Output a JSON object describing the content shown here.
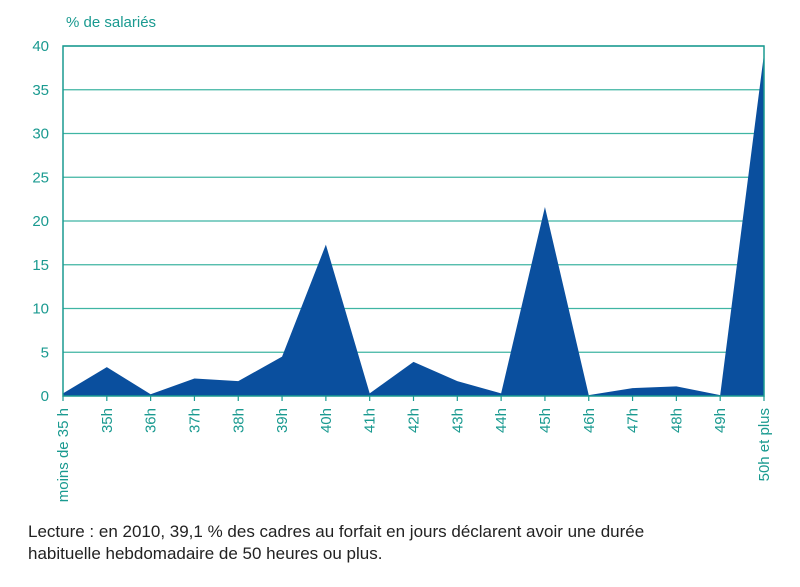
{
  "chart_data": {
    "type": "area",
    "ylabel": "% de salariés",
    "ylim": [
      0,
      40
    ],
    "yticks": [
      0,
      5,
      10,
      15,
      20,
      25,
      30,
      35,
      40
    ],
    "categories": [
      "moins de 35 h",
      "35h",
      "36h",
      "37h",
      "38h",
      "39h",
      "40h",
      "41h",
      "42h",
      "43h",
      "44h",
      "45h",
      "46h",
      "47h",
      "48h",
      "49h",
      "50h et plus"
    ],
    "values": [
      0.3,
      3.3,
      0.2,
      2.0,
      1.7,
      4.5,
      17.3,
      0.3,
      3.9,
      1.7,
      0.3,
      21.6,
      0.1,
      0.9,
      1.1,
      0.1,
      39.1
    ],
    "grid": true,
    "fill_color": "#0a4f9e",
    "axis_color": "#1a9a90",
    "grid_color": "#3fb5a3"
  },
  "caption_line1": "Lecture : en 2010, 39,1 %  des cadres au forfait en jours déclarent avoir une durée",
  "caption_line2": "habituelle hebdomadaire de 50 heures ou plus."
}
